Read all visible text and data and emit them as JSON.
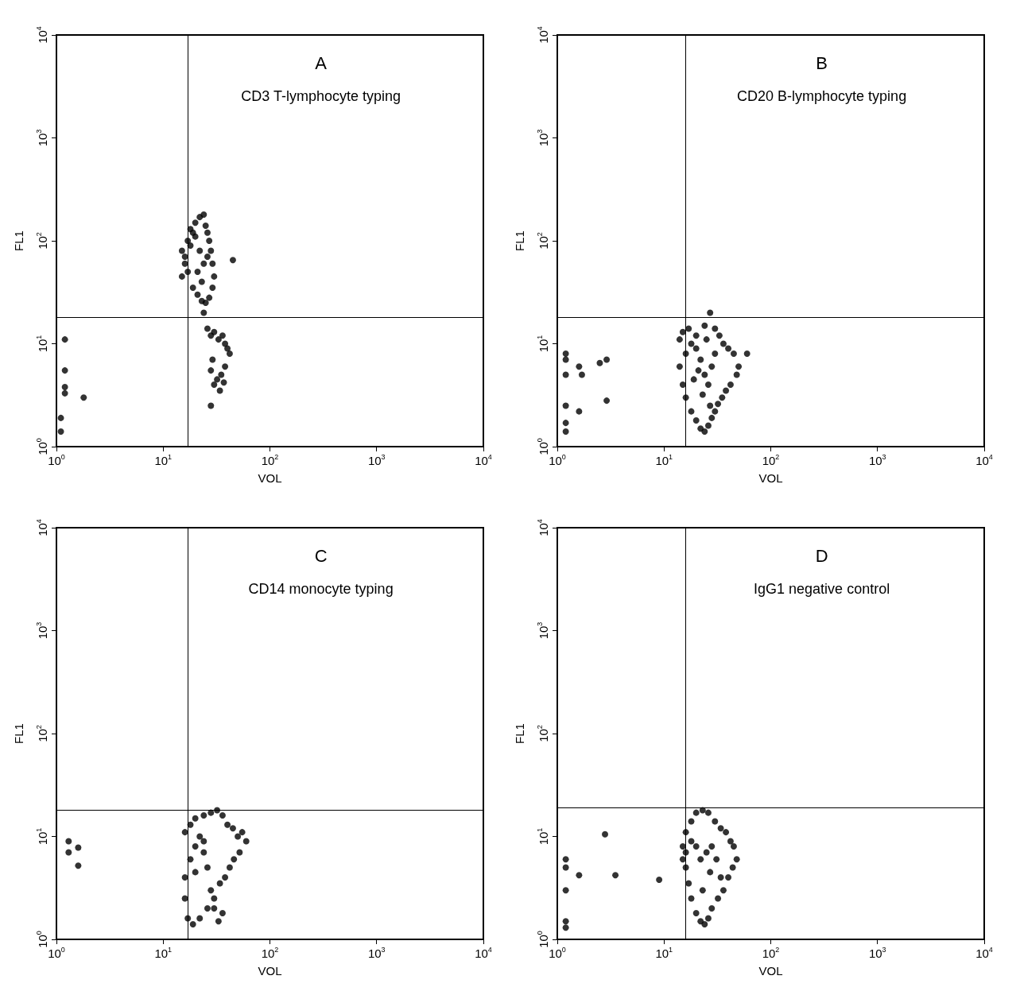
{
  "chart_data": [
    {
      "type": "scatter",
      "title": "A",
      "subtitle": "CD3 T-lymphocyte typing",
      "xlabel": "VOL",
      "ylabel": "FL1",
      "log": "xy",
      "grid": false,
      "marker": "circle",
      "xlim": [
        1,
        10000
      ],
      "ylim": [
        1,
        10000
      ],
      "xticks": [
        {
          "value": 1,
          "label": "10$^{0}$"
        },
        {
          "value": 10,
          "label": "10$^{1}$"
        },
        {
          "value": 100,
          "label": "10$^{2}$"
        },
        {
          "value": 1000,
          "label": "10$^{3}$"
        },
        {
          "value": 10000,
          "label": "10$^{4}$"
        }
      ],
      "yticks": [
        {
          "value": 1,
          "label": "10$^{0}$"
        },
        {
          "value": 10,
          "label": "10$^{1}$"
        },
        {
          "value": 100,
          "label": "10$^{2}$"
        },
        {
          "value": 1000,
          "label": "10$^{3}$"
        },
        {
          "value": 10000,
          "label": "10$^{4}$"
        }
      ],
      "ref_lines": [
        {
          "axis": "x",
          "value": 17
        },
        {
          "axis": "y",
          "value": 18
        }
      ],
      "series": [
        {
          "color": "#000000",
          "x": [
            15,
            16,
            15,
            17,
            18,
            20,
            22,
            24,
            25,
            26,
            27,
            28,
            29,
            30,
            29,
            27,
            25,
            23,
            21,
            19,
            17,
            16,
            18,
            20,
            22,
            24,
            26,
            21,
            23,
            19,
            45,
            24,
            26,
            28,
            30,
            33,
            36,
            38,
            40,
            42,
            38,
            35,
            32,
            30,
            28,
            29,
            34,
            37,
            1.2,
            1.2,
            1.2,
            1.2,
            1.1,
            1.1,
            1.8,
            28
          ],
          "values": [
            80,
            60,
            45,
            100,
            130,
            150,
            170,
            180,
            140,
            120,
            100,
            80,
            60,
            45,
            35,
            28,
            25,
            26,
            30,
            35,
            50,
            70,
            90,
            110,
            80,
            60,
            70,
            50,
            40,
            120,
            65,
            20,
            14,
            12,
            13,
            11,
            12,
            10,
            9,
            8,
            6,
            5,
            4.5,
            4,
            5.5,
            7,
            3.5,
            4.2,
            11,
            5.5,
            3.8,
            3.3,
            1.9,
            1.4,
            3,
            2.5
          ]
        }
      ]
    },
    {
      "type": "scatter",
      "title": "B",
      "subtitle": "CD20 B-lymphocyte typing",
      "xlabel": "VOL",
      "ylabel": "FL1",
      "log": "xy",
      "grid": false,
      "marker": "circle",
      "xlim": [
        1,
        10000
      ],
      "ylim": [
        1,
        10000
      ],
      "xticks": [
        {
          "value": 1,
          "label": "10$^{0}$"
        },
        {
          "value": 10,
          "label": "10$^{1}$"
        },
        {
          "value": 100,
          "label": "10$^{2}$"
        },
        {
          "value": 1000,
          "label": "10$^{3}$"
        },
        {
          "value": 10000,
          "label": "10$^{4}$"
        }
      ],
      "yticks": [
        {
          "value": 1,
          "label": "10$^{0}$"
        },
        {
          "value": 10,
          "label": "10$^{1}$"
        },
        {
          "value": 100,
          "label": "10$^{2}$"
        },
        {
          "value": 1000,
          "label": "10$^{3}$"
        },
        {
          "value": 10000,
          "label": "10$^{4}$"
        }
      ],
      "ref_lines": [
        {
          "axis": "x",
          "value": 16
        },
        {
          "axis": "y",
          "value": 18
        }
      ],
      "series": [
        {
          "color": "#000000",
          "x": [
            14,
            15,
            17,
            20,
            24,
            27,
            30,
            33,
            36,
            40,
            45,
            50,
            48,
            42,
            38,
            35,
            32,
            30,
            28,
            26,
            24,
            22,
            20,
            18,
            16,
            15,
            14,
            16,
            18,
            20,
            22,
            24,
            26,
            28,
            30,
            25,
            21,
            19,
            23,
            27,
            1.2,
            1.2,
            1.2,
            1.2,
            1.2,
            1.2,
            1.6,
            1.7,
            2.5,
            2.9,
            2.9,
            1.6,
            60
          ],
          "values": [
            11,
            13,
            14,
            12,
            15,
            20,
            14,
            12,
            10,
            9,
            8,
            6,
            5,
            4,
            3.5,
            3,
            2.6,
            2.2,
            1.9,
            1.6,
            1.4,
            1.5,
            1.8,
            2.2,
            3,
            4,
            6,
            8,
            10,
            9,
            7,
            5,
            4,
            6,
            8,
            11,
            5.5,
            4.5,
            3.2,
            2.5,
            8,
            5,
            7,
            2.5,
            1.7,
            1.4,
            6,
            5,
            6.5,
            7,
            2.8,
            2.2,
            8
          ]
        }
      ]
    },
    {
      "type": "scatter",
      "title": "C",
      "subtitle": "CD14 monocyte typing",
      "xlabel": "VOL",
      "ylabel": "FL1",
      "log": "xy",
      "grid": false,
      "marker": "circle",
      "xlim": [
        1,
        10000
      ],
      "ylim": [
        1,
        10000
      ],
      "xticks": [
        {
          "value": 1,
          "label": "10$^{0}$"
        },
        {
          "value": 10,
          "label": "10$^{1}$"
        },
        {
          "value": 100,
          "label": "10$^{2}$"
        },
        {
          "value": 1000,
          "label": "10$^{3}$"
        },
        {
          "value": 10000,
          "label": "10$^{4}$"
        }
      ],
      "yticks": [
        {
          "value": 1,
          "label": "10$^{0}$"
        },
        {
          "value": 10,
          "label": "10$^{1}$"
        },
        {
          "value": 100,
          "label": "10$^{2}$"
        },
        {
          "value": 1000,
          "label": "10$^{3}$"
        },
        {
          "value": 10000,
          "label": "10$^{4}$"
        }
      ],
      "ref_lines": [
        {
          "axis": "x",
          "value": 17
        },
        {
          "axis": "y",
          "value": 18
        }
      ],
      "series": [
        {
          "color": "#000000",
          "x": [
            16,
            18,
            20,
            24,
            28,
            32,
            36,
            40,
            45,
            50,
            55,
            60,
            52,
            46,
            42,
            38,
            34,
            30,
            26,
            22,
            19,
            17,
            16,
            16,
            18,
            20,
            22,
            24,
            26,
            28,
            30,
            33,
            36,
            24,
            20,
            1.3,
            1.3,
            1.6,
            1.6
          ],
          "values": [
            11,
            13,
            15,
            16,
            17,
            18,
            16,
            13,
            12,
            10,
            11,
            9,
            7,
            6,
            5,
            4,
            3.5,
            2.5,
            2,
            1.6,
            1.4,
            1.6,
            2.5,
            4,
            6,
            8,
            10,
            7,
            5,
            3,
            2,
            1.5,
            1.8,
            9,
            4.5,
            9,
            7,
            7.8,
            5.2
          ]
        }
      ]
    },
    {
      "type": "scatter",
      "title": "D",
      "subtitle": "IgG1 negative control",
      "xlabel": "VOL",
      "ylabel": "FL1",
      "log": "xy",
      "grid": false,
      "marker": "circle",
      "xlim": [
        1,
        10000
      ],
      "ylim": [
        1,
        10000
      ],
      "xticks": [
        {
          "value": 1,
          "label": "10$^{0}$"
        },
        {
          "value": 10,
          "label": "10$^{1}$"
        },
        {
          "value": 100,
          "label": "10$^{2}$"
        },
        {
          "value": 1000,
          "label": "10$^{3}$"
        },
        {
          "value": 10000,
          "label": "10$^{4}$"
        }
      ],
      "yticks": [
        {
          "value": 1,
          "label": "10$^{0}$"
        },
        {
          "value": 10,
          "label": "10$^{1}$"
        },
        {
          "value": 100,
          "label": "10$^{2}$"
        },
        {
          "value": 1000,
          "label": "10$^{3}$"
        },
        {
          "value": 10000,
          "label": "10$^{4}$"
        }
      ],
      "ref_lines": [
        {
          "axis": "x",
          "value": 16
        },
        {
          "axis": "y",
          "value": 19
        }
      ],
      "series": [
        {
          "color": "#000000",
          "x": [
            15,
            16,
            18,
            20,
            23,
            26,
            30,
            34,
            38,
            42,
            45,
            48,
            44,
            40,
            36,
            32,
            28,
            26,
            24,
            22,
            20,
            18,
            17,
            16,
            15,
            16,
            18,
            20,
            22,
            25,
            28,
            31,
            34,
            23,
            27,
            1.2,
            1.2,
            1.2,
            1.2,
            1.2,
            1.6,
            2.8,
            3.5,
            9
          ],
          "values": [
            8,
            11,
            14,
            17,
            18,
            17,
            14,
            12,
            11,
            9,
            8,
            6,
            5,
            4,
            3,
            2.5,
            2,
            1.6,
            1.4,
            1.5,
            1.8,
            2.5,
            3.5,
            5,
            6,
            7,
            9,
            8,
            6,
            7,
            8,
            6,
            4,
            3,
            4.5,
            6,
            5,
            3,
            1.5,
            1.3,
            4.2,
            10.5,
            4.2,
            3.8
          ]
        }
      ]
    }
  ]
}
